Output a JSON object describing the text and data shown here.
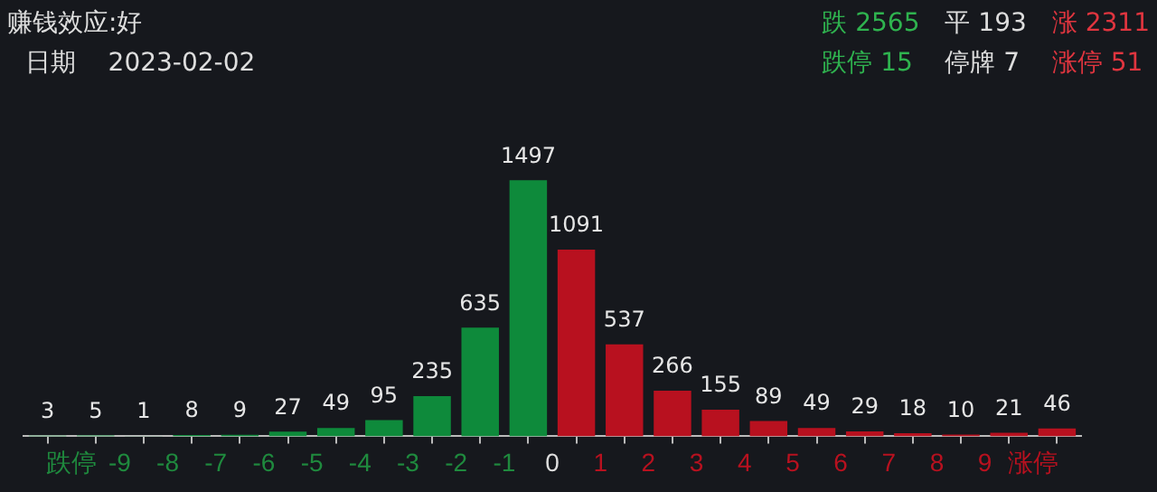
{
  "chart_data": {
    "type": "bar",
    "title": "赚钱效应:好",
    "subtitle": "日期    2023-02-02",
    "annotations": [
      "跌 2565",
      "平 193",
      "涨 2311",
      "跌停 15",
      "停牌 7",
      "涨停 51"
    ],
    "x": [
      -10.5,
      -9.5,
      -8.5,
      -7.5,
      -6.5,
      -5.5,
      -4.5,
      -3.5,
      -2.5,
      -1.5,
      -0.5,
      0.5,
      1.5,
      2.5,
      3.5,
      4.5,
      5.5,
      6.5,
      7.5,
      8.5,
      9.5,
      10.5
    ],
    "values": [
      3,
      5,
      1,
      8,
      9,
      27,
      49,
      95,
      235,
      635,
      1497,
      1091,
      537,
      266,
      155,
      89,
      49,
      29,
      18,
      10,
      21,
      46
    ],
    "colors": [
      "#0e8a3b",
      "#0e8a3b",
      "#0e8a3b",
      "#0e8a3b",
      "#0e8a3b",
      "#0e8a3b",
      "#0e8a3b",
      "#0e8a3b",
      "#0e8a3b",
      "#0e8a3b",
      "#0e8a3b",
      "#b8111f",
      "#b8111f",
      "#b8111f",
      "#b8111f",
      "#b8111f",
      "#b8111f",
      "#b8111f",
      "#b8111f",
      "#b8111f",
      "#b8111f",
      "#b8111f"
    ],
    "xlim": [
      -11,
      11
    ],
    "xticks": [
      {
        "value": -10,
        "label": "跌停"
      },
      -9,
      -8,
      -7,
      -6,
      -5,
      -4,
      -3,
      -2,
      -1,
      0,
      1,
      2,
      3,
      4,
      5,
      6,
      7,
      8,
      9,
      {
        "value": 10,
        "label": "涨停"
      }
    ],
    "data_labels": true,
    "grid": false,
    "legend": false
  }
}
